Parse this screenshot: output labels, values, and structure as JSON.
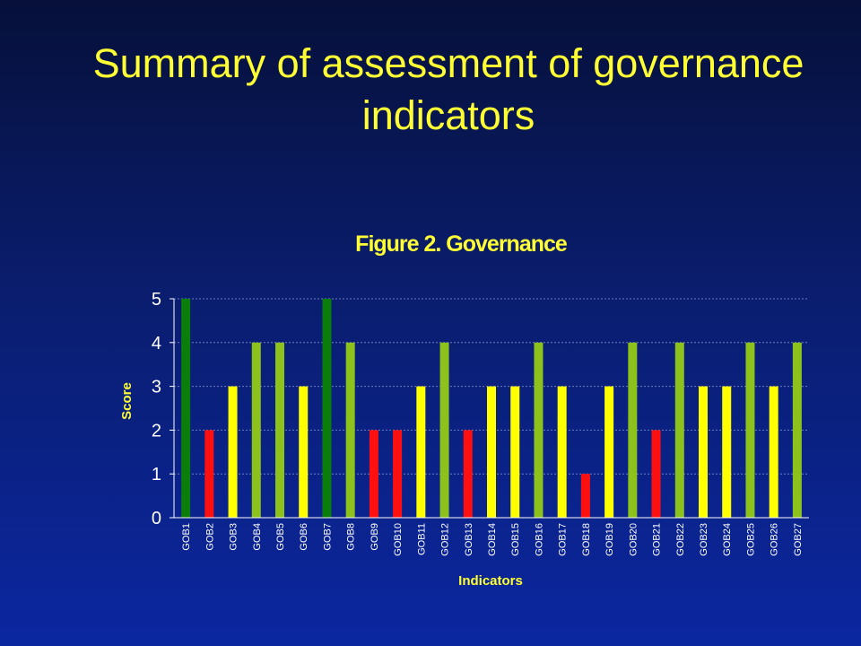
{
  "slide": {
    "title": "Summary of assessment of governance indicators"
  },
  "colors": {
    "background_top": "#06103a",
    "background_bottom": "#0b27a0",
    "title_text": "#ffff33",
    "score_5": "#0a7d0a",
    "score_4": "#8dc21c",
    "score_3": "#ffff00",
    "score_2": "#ff1010",
    "score_1": "#ff1010"
  },
  "chart_data": {
    "type": "bar",
    "title": "Figure 2. Governance",
    "xlabel": "Indicators",
    "ylabel": "Score",
    "ylim": [
      0,
      5
    ],
    "yticks": [
      0,
      1,
      2,
      3,
      4,
      5
    ],
    "grid": true,
    "legend": "none",
    "categories": [
      "GOB1",
      "GOB2",
      "GOB3",
      "GOB4",
      "GOB5",
      "GOB6",
      "GOB7",
      "GOB8",
      "GOB9",
      "GOB10",
      "GOB11",
      "GOB12",
      "GOB13",
      "GOB14",
      "GOB15",
      "GOB16",
      "GOB17",
      "GOB18",
      "GOB19",
      "GOB20",
      "GOB21",
      "GOB22",
      "GOB23",
      "GOB24",
      "GOB25",
      "GOB26",
      "GOB27"
    ],
    "values": [
      5,
      2,
      3,
      4,
      4,
      3,
      5,
      4,
      2,
      2,
      3,
      4,
      2,
      3,
      3,
      4,
      3,
      1,
      3,
      4,
      2,
      4,
      3,
      3,
      4,
      3,
      4
    ]
  }
}
